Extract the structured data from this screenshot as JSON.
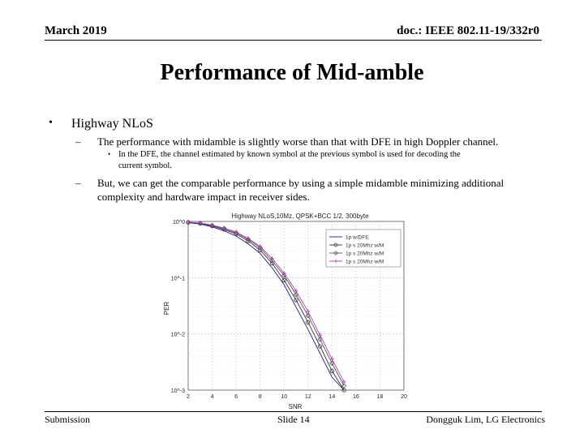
{
  "header": {
    "date": "March 2019",
    "doc": "doc.: IEEE 802.11-19/332r0"
  },
  "title": "Performance of Mid-amble",
  "bullets": {
    "b1": "Highway NLoS",
    "b1_sub1": "The performance with midamble is slightly worse than that with DFE in high Doppler channel.",
    "b1_sub1_sub_line1": "In the DFE, the channel estimated by known symbol at the previous symbol is used for decoding the",
    "b1_sub1_sub_line2": "current symbol.",
    "b1_sub2_line1": "But, we can get the comparable performance by using a simple midamble minimizing additional",
    "b1_sub2_line2": "complexity and hardware impact in receiver sides."
  },
  "chart_data": {
    "type": "line",
    "title": "Highway NLoS,10Mz, QPSK+BCC 1/2, 300byte",
    "xlabel": "SNR",
    "ylabel": "PER",
    "xlim": [
      2,
      20
    ],
    "ylim": [
      0.001,
      1
    ],
    "log_y": true,
    "grid": true,
    "legend": "top-right",
    "xticks": [
      "2",
      "4",
      "6",
      "8",
      "10",
      "12",
      "14",
      "16",
      "18",
      "20"
    ],
    "yticks": [
      "10^0",
      "10^-1",
      "10^-2",
      "10^-3"
    ],
    "series": [
      {
        "name": "1p w/DFE",
        "color": "#1a1a8c",
        "x": [
          2,
          3,
          4,
          5,
          6,
          7,
          8,
          9,
          10,
          11,
          12,
          13,
          14,
          15
        ],
        "y": [
          0.95,
          0.9,
          0.8,
          0.68,
          0.55,
          0.4,
          0.27,
          0.15,
          0.075,
          0.03,
          0.012,
          0.0045,
          0.0017,
          0.001
        ]
      },
      {
        "name": "1p s 20Mhz w/M",
        "color": "#333333",
        "x": [
          2,
          3,
          4,
          5,
          6,
          7,
          8,
          9,
          10,
          11,
          12,
          13,
          14,
          15
        ],
        "y": [
          0.96,
          0.92,
          0.83,
          0.72,
          0.6,
          0.45,
          0.31,
          0.18,
          0.09,
          0.04,
          0.016,
          0.006,
          0.0022,
          0.001
        ]
      },
      {
        "name": "1p s 20Mhz w/M",
        "color": "#555555",
        "x": [
          2,
          3,
          4,
          5,
          6,
          7,
          8,
          9,
          10,
          11,
          12,
          13,
          14,
          15
        ],
        "y": [
          0.97,
          0.93,
          0.85,
          0.75,
          0.63,
          0.48,
          0.34,
          0.2,
          0.11,
          0.05,
          0.021,
          0.008,
          0.003,
          0.0012
        ]
      },
      {
        "name": "1p s 20Mhz w/M",
        "color": "#b040b0",
        "x": [
          2,
          3,
          4,
          5,
          6,
          7,
          8,
          9,
          10,
          11,
          12,
          13,
          14,
          15
        ],
        "y": [
          0.97,
          0.94,
          0.86,
          0.76,
          0.65,
          0.5,
          0.36,
          0.22,
          0.12,
          0.058,
          0.025,
          0.0095,
          0.0036,
          0.0014
        ]
      }
    ]
  },
  "footer": {
    "left": "Submission",
    "center": "Slide 14",
    "right": "Dongguk Lim, LG Electronics"
  }
}
